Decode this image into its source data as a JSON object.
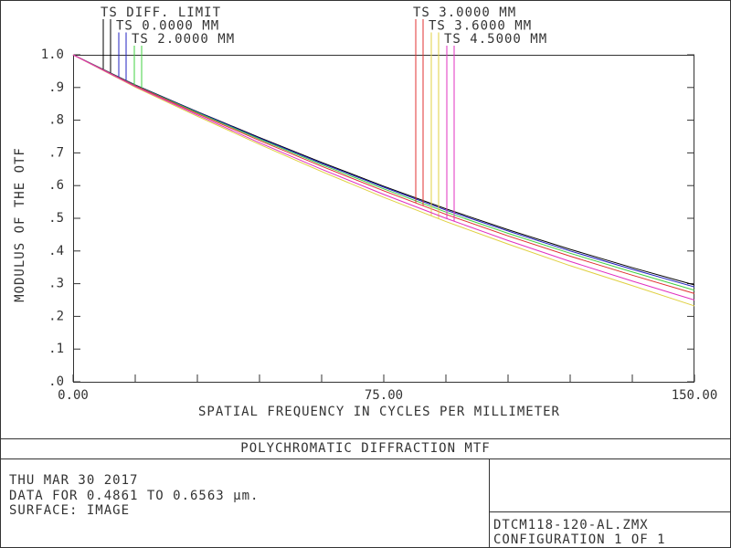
{
  "chart_data": {
    "type": "line",
    "ylabel": "MODULUS OF THE OTF",
    "xlabel": "SPATIAL FREQUENCY IN CYCLES PER MILLIMETER",
    "x": [
      0,
      15,
      30,
      45,
      60,
      75,
      90,
      105,
      120,
      135,
      150
    ],
    "xlim": [
      0,
      150
    ],
    "ylim": [
      0,
      1
    ],
    "xticks": [
      {
        "value": 0,
        "label": "0.00"
      },
      {
        "value": 75,
        "label": "75.00"
      },
      {
        "value": 150,
        "label": "150.00"
      }
    ],
    "xminorticks": [
      15,
      30,
      45,
      60,
      90,
      105,
      120,
      135
    ],
    "yticks": [
      {
        "value": 1,
        "label": "1.0"
      },
      {
        "value": 0.9,
        "label": ".9"
      },
      {
        "value": 0.8,
        "label": ".8"
      },
      {
        "value": 0.7,
        "label": ".7"
      },
      {
        "value": 0.6,
        "label": ".6"
      },
      {
        "value": 0.5,
        "label": ".5"
      },
      {
        "value": 0.4,
        "label": ".4"
      },
      {
        "value": 0.3,
        "label": ".3"
      },
      {
        "value": 0.2,
        "label": ".2"
      },
      {
        "value": 0.1,
        "label": ".1"
      },
      {
        "value": 0,
        "label": ".0"
      }
    ],
    "series": [
      {
        "name": "TS DIFF. LIMIT",
        "color": "#000000",
        "values": [
          1,
          0.908,
          0.826,
          0.747,
          0.671,
          0.598,
          0.529,
          0.465,
          0.405,
          0.349,
          0.296
        ]
      },
      {
        "name": "TS 0.0000 MM",
        "color": "#2020c0",
        "values": [
          1,
          0.907,
          0.825,
          0.745,
          0.668,
          0.595,
          0.525,
          0.461,
          0.4,
          0.344,
          0.29
        ]
      },
      {
        "name": "TS 2.0000 MM",
        "color": "#40d040",
        "values": [
          1,
          0.906,
          0.823,
          0.742,
          0.664,
          0.59,
          0.519,
          0.454,
          0.393,
          0.336,
          0.28
        ]
      },
      {
        "name": "TS 3.0000 MM",
        "color": "#e03030",
        "values": [
          1,
          0.905,
          0.82,
          0.738,
          0.659,
          0.584,
          0.512,
          0.446,
          0.384,
          0.326,
          0.27
        ]
      },
      {
        "name": "TS 3.6000 MM",
        "color": "#e0d040",
        "values": [
          1,
          0.901,
          0.812,
          0.726,
          0.643,
          0.564,
          0.49,
          0.421,
          0.355,
          0.294,
          0.232
        ]
      },
      {
        "name": "TS 4.5000 MM",
        "color": "#e030c0",
        "values": [
          1,
          0.903,
          0.816,
          0.731,
          0.65,
          0.573,
          0.5,
          0.432,
          0.368,
          0.308,
          0.25
        ]
      }
    ]
  },
  "footer": {
    "title": "POLYCHROMATIC DIFFRACTION MTF",
    "date": "THU MAR 30 2017",
    "data_range": "DATA FOR 0.4861 TO 0.6563 µm.",
    "surface": "SURFACE: IMAGE",
    "file": "DTCM118-120-AL.ZMX",
    "configuration": "CONFIGURATION 1 OF 1"
  }
}
